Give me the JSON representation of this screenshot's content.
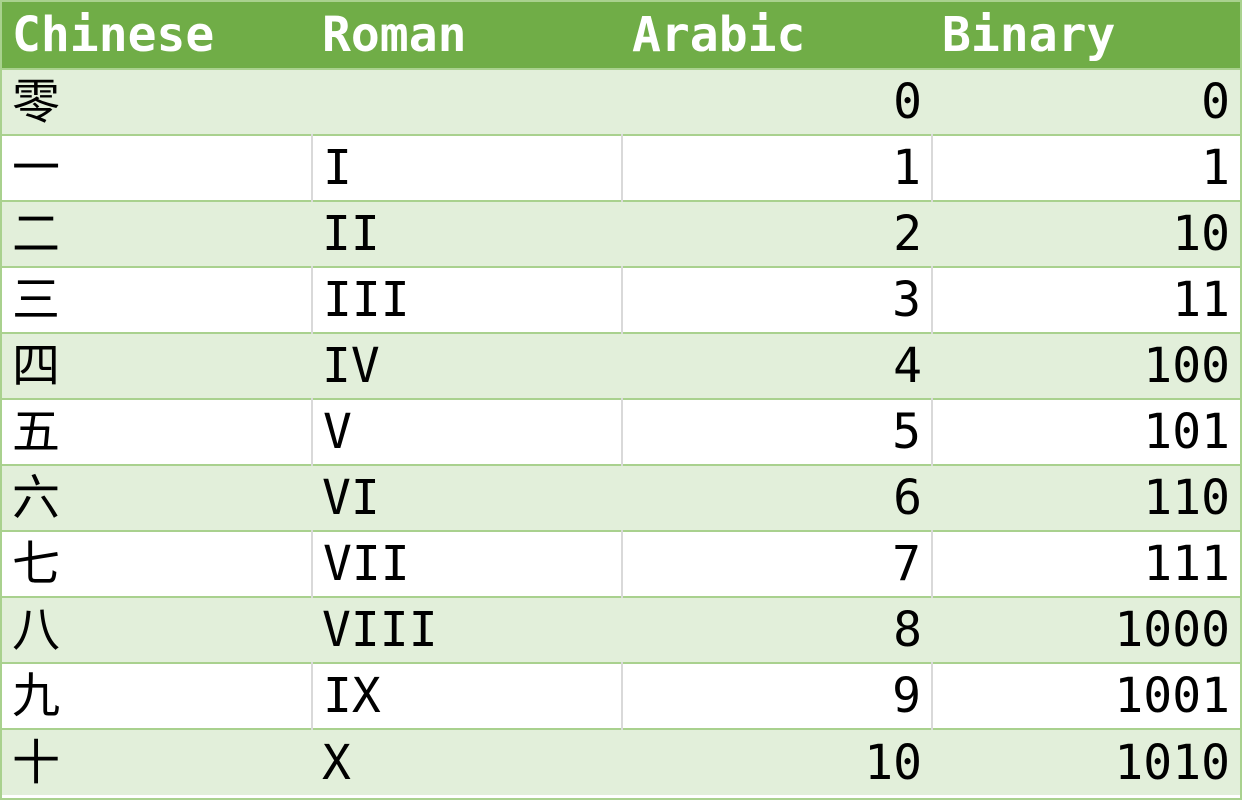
{
  "colors": {
    "header_bg": "#70ad47",
    "header_text": "#ffffff",
    "band_row_bg": "#e2efda",
    "plain_row_bg": "#ffffff",
    "border": "#a9d18e"
  },
  "table": {
    "headers": [
      "Chinese",
      "Roman",
      "Arabic",
      "Binary"
    ],
    "rows": [
      {
        "chinese": "零",
        "roman": "",
        "arabic": "0",
        "binary": "0"
      },
      {
        "chinese": "一",
        "roman": "I",
        "arabic": "1",
        "binary": "1"
      },
      {
        "chinese": "二",
        "roman": "II",
        "arabic": "2",
        "binary": "10"
      },
      {
        "chinese": "三",
        "roman": "III",
        "arabic": "3",
        "binary": "11"
      },
      {
        "chinese": "四",
        "roman": "IV",
        "arabic": "4",
        "binary": "100"
      },
      {
        "chinese": "五",
        "roman": "V",
        "arabic": "5",
        "binary": "101"
      },
      {
        "chinese": "六",
        "roman": "VI",
        "arabic": "6",
        "binary": "110"
      },
      {
        "chinese": "七",
        "roman": "VII",
        "arabic": "7",
        "binary": "111"
      },
      {
        "chinese": "八",
        "roman": "VIII",
        "arabic": "8",
        "binary": "1000"
      },
      {
        "chinese": "九",
        "roman": "IX",
        "arabic": "9",
        "binary": "1001"
      },
      {
        "chinese": "十",
        "roman": "X",
        "arabic": "10",
        "binary": "1010"
      }
    ]
  }
}
